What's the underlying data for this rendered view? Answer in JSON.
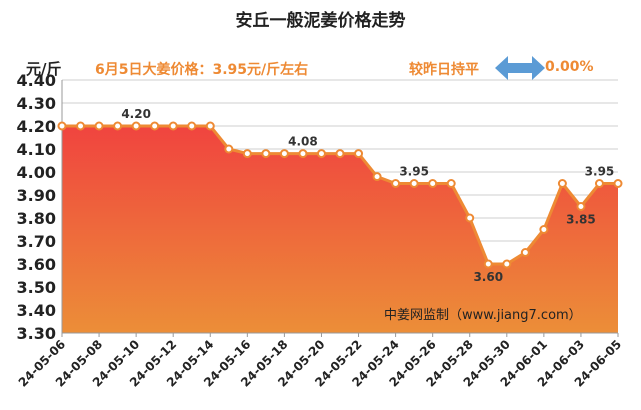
{
  "title": "安丘一般泥姜价格走势",
  "unit_label": "元/斤",
  "price_info": "6月5日大姜价格：3.95元/斤左右",
  "compare_label": "较昨日持平",
  "change_pct": "0.00%",
  "watermark": "中姜网监制（www.jiang7.com）",
  "icons": {
    "compare": "double-arrow-icon"
  },
  "colors": {
    "line": "#ee8a34",
    "accent_text": "#ee8a34",
    "area_top": "#f0443f",
    "area_bottom": "#ec8e38",
    "arrow": "#5b9bd5",
    "grid": "#cfcfcf"
  },
  "chart_data": {
    "type": "area",
    "title": "安丘一般泥姜价格走势",
    "ylabel": "元/斤",
    "xlabel": "",
    "ylim": [
      3.3,
      4.4
    ],
    "yticks": [
      "3.30",
      "3.40",
      "3.50",
      "3.60",
      "3.70",
      "3.80",
      "3.90",
      "4.00",
      "4.10",
      "4.20",
      "4.30",
      "4.40"
    ],
    "grid": true,
    "legend": "none",
    "x": [
      "24-05-06",
      "24-05-07",
      "24-05-08",
      "24-05-09",
      "24-05-10",
      "24-05-11",
      "24-05-12",
      "24-05-13",
      "24-05-14",
      "24-05-15",
      "24-05-16",
      "24-05-17",
      "24-05-18",
      "24-05-19",
      "24-05-20",
      "24-05-21",
      "24-05-22",
      "24-05-23",
      "24-05-24",
      "24-05-25",
      "24-05-26",
      "24-05-27",
      "24-05-28",
      "24-05-29",
      "24-05-30",
      "24-05-31",
      "24-06-01",
      "24-06-02",
      "24-06-03",
      "24-06-04",
      "24-06-05"
    ],
    "x_tick_labels": [
      "24-05-06",
      "24-05-08",
      "24-05-10",
      "24-05-12",
      "24-05-14",
      "24-05-16",
      "24-05-18",
      "24-05-20",
      "24-05-22",
      "24-05-24",
      "24-05-26",
      "24-05-28",
      "24-05-30",
      "24-06-01",
      "24-06-03",
      "24-06-05"
    ],
    "values": [
      4.2,
      4.2,
      4.2,
      4.2,
      4.2,
      4.2,
      4.2,
      4.2,
      4.2,
      4.1,
      4.08,
      4.08,
      4.08,
      4.08,
      4.08,
      4.08,
      4.08,
      3.98,
      3.95,
      3.95,
      3.95,
      3.95,
      3.8,
      3.6,
      3.6,
      3.65,
      3.75,
      3.95,
      3.85,
      3.95,
      3.95
    ],
    "data_labels": [
      {
        "x": "24-05-10",
        "text": "4.20",
        "pos": "above"
      },
      {
        "x": "24-05-19",
        "text": "4.08",
        "pos": "above"
      },
      {
        "x": "24-05-25",
        "text": "3.95",
        "pos": "above"
      },
      {
        "x": "24-05-29",
        "text": "3.60",
        "pos": "below"
      },
      {
        "x": "24-06-03",
        "text": "3.85",
        "pos": "below"
      },
      {
        "x": "24-06-04",
        "text": "3.95",
        "pos": "above"
      }
    ]
  }
}
